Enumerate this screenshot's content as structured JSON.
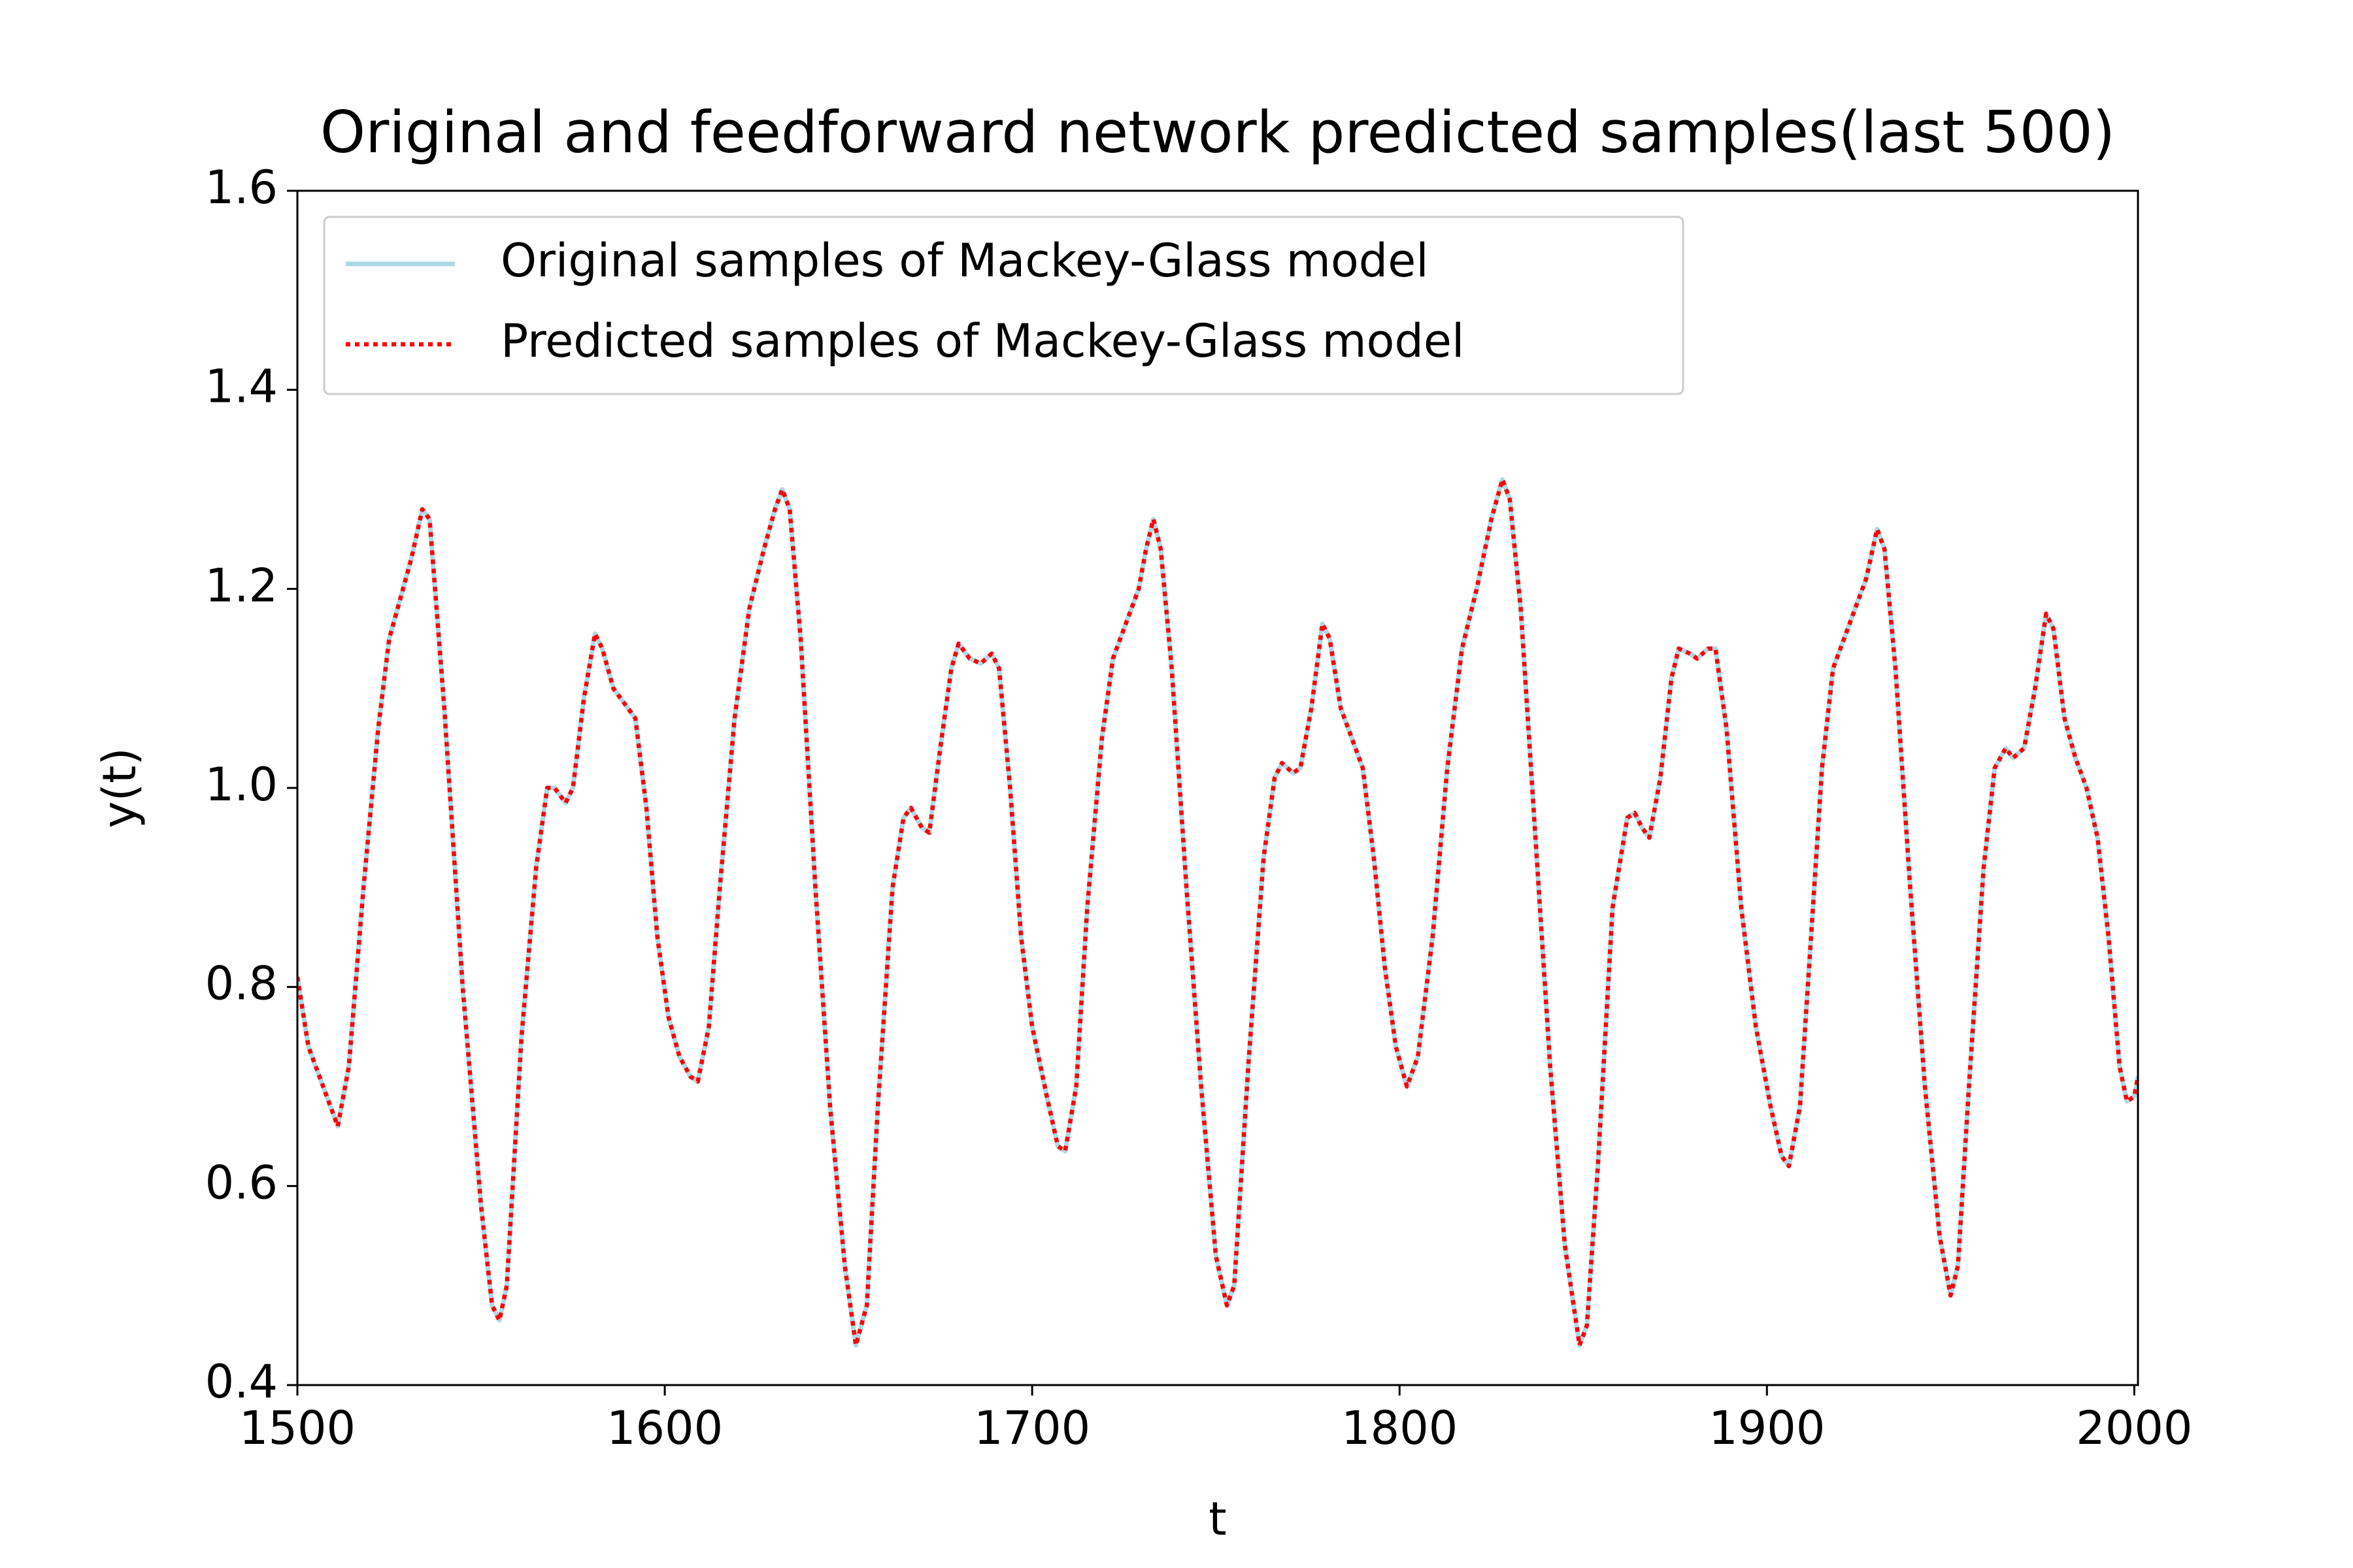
{
  "chart_data": {
    "type": "line",
    "title": "Original and feedforward network predicted samples(last 500)",
    "xlabel": "t",
    "ylabel": "y(t)",
    "x": [
      1500,
      1503,
      1508,
      1511,
      1514,
      1518,
      1522,
      1525,
      1528,
      1531,
      1534,
      1536,
      1540,
      1545,
      1550,
      1553,
      1555,
      1557,
      1561,
      1565,
      1568,
      1570,
      1573,
      1575,
      1578,
      1581,
      1583,
      1586,
      1589,
      1592,
      1595,
      1598,
      1601,
      1604,
      1607,
      1609,
      1612,
      1615,
      1619,
      1623,
      1627,
      1630,
      1632,
      1634,
      1637,
      1641,
      1645,
      1649,
      1652,
      1655,
      1658,
      1662,
      1665,
      1667,
      1670,
      1672,
      1675,
      1678,
      1680,
      1683,
      1686,
      1689,
      1691,
      1694,
      1697,
      1700,
      1704,
      1707,
      1709,
      1712,
      1715,
      1719,
      1722,
      1726,
      1729,
      1731,
      1733,
      1735,
      1738,
      1742,
      1746,
      1750,
      1753,
      1755,
      1759,
      1763,
      1766,
      1768,
      1771,
      1773,
      1776,
      1779,
      1781,
      1784,
      1787,
      1790,
      1793,
      1796,
      1799,
      1802,
      1805,
      1809,
      1813,
      1817,
      1821,
      1825,
      1828,
      1830,
      1833,
      1837,
      1841,
      1845,
      1849,
      1851,
      1854,
      1858,
      1862,
      1864,
      1866,
      1868,
      1871,
      1874,
      1876,
      1879,
      1881,
      1884,
      1886,
      1889,
      1893,
      1897,
      1901,
      1904,
      1906,
      1909,
      1912,
      1915,
      1918,
      1922,
      1925,
      1927,
      1930,
      1932,
      1935,
      1939,
      1943,
      1947,
      1950,
      1952,
      1955,
      1959,
      1962,
      1965,
      1967,
      1970,
      1973,
      1976,
      1978,
      1981,
      1984,
      1987,
      1990,
      1993,
      1996,
      1998,
      2000,
      2001
    ],
    "series": [
      {
        "name": "Original samples of Mackey-Glass model",
        "color": "#add8e6",
        "style": "solid",
        "values": [
          0.81,
          0.74,
          0.69,
          0.66,
          0.72,
          0.9,
          1.06,
          1.15,
          1.19,
          1.23,
          1.28,
          1.27,
          1.08,
          0.8,
          0.58,
          0.48,
          0.465,
          0.5,
          0.75,
          0.92,
          1.0,
          1.0,
          0.985,
          1.0,
          1.09,
          1.155,
          1.14,
          1.1,
          1.085,
          1.07,
          0.98,
          0.85,
          0.77,
          0.73,
          0.71,
          0.705,
          0.76,
          0.9,
          1.07,
          1.18,
          1.24,
          1.28,
          1.3,
          1.28,
          1.15,
          0.9,
          0.68,
          0.52,
          0.44,
          0.48,
          0.68,
          0.9,
          0.97,
          0.98,
          0.96,
          0.955,
          1.04,
          1.12,
          1.145,
          1.13,
          1.125,
          1.135,
          1.12,
          1.0,
          0.85,
          0.76,
          0.69,
          0.64,
          0.635,
          0.7,
          0.88,
          1.05,
          1.13,
          1.17,
          1.2,
          1.24,
          1.27,
          1.24,
          1.12,
          0.9,
          0.7,
          0.53,
          0.48,
          0.5,
          0.73,
          0.93,
          1.01,
          1.025,
          1.015,
          1.02,
          1.08,
          1.165,
          1.15,
          1.08,
          1.05,
          1.02,
          0.93,
          0.82,
          0.74,
          0.7,
          0.73,
          0.85,
          1.02,
          1.14,
          1.2,
          1.27,
          1.31,
          1.29,
          1.18,
          0.95,
          0.72,
          0.54,
          0.44,
          0.46,
          0.62,
          0.88,
          0.97,
          0.975,
          0.96,
          0.95,
          1.01,
          1.11,
          1.14,
          1.135,
          1.13,
          1.14,
          1.14,
          1.06,
          0.88,
          0.76,
          0.68,
          0.63,
          0.62,
          0.68,
          0.85,
          1.02,
          1.12,
          1.16,
          1.19,
          1.21,
          1.26,
          1.24,
          1.12,
          0.9,
          0.7,
          0.55,
          0.49,
          0.52,
          0.7,
          0.92,
          1.02,
          1.04,
          1.03,
          1.04,
          1.1,
          1.175,
          1.16,
          1.07,
          1.03,
          1.0,
          0.95,
          0.85,
          0.72,
          0.685,
          0.69,
          0.71
        ]
      },
      {
        "name": "Predicted samples of Mackey-Glass model",
        "color": "#ff0000",
        "style": "dotted",
        "values": [
          0.81,
          0.74,
          0.69,
          0.66,
          0.72,
          0.9,
          1.06,
          1.15,
          1.19,
          1.23,
          1.28,
          1.27,
          1.08,
          0.8,
          0.58,
          0.48,
          0.465,
          0.5,
          0.75,
          0.92,
          1.0,
          1.0,
          0.985,
          1.0,
          1.09,
          1.155,
          1.14,
          1.1,
          1.085,
          1.07,
          0.98,
          0.85,
          0.77,
          0.73,
          0.71,
          0.705,
          0.76,
          0.9,
          1.07,
          1.18,
          1.24,
          1.28,
          1.3,
          1.28,
          1.15,
          0.9,
          0.68,
          0.52,
          0.44,
          0.48,
          0.68,
          0.9,
          0.97,
          0.98,
          0.96,
          0.955,
          1.04,
          1.12,
          1.145,
          1.13,
          1.125,
          1.135,
          1.12,
          1.0,
          0.85,
          0.76,
          0.69,
          0.64,
          0.635,
          0.7,
          0.88,
          1.05,
          1.13,
          1.17,
          1.2,
          1.24,
          1.27,
          1.24,
          1.12,
          0.9,
          0.7,
          0.53,
          0.48,
          0.5,
          0.73,
          0.93,
          1.01,
          1.025,
          1.015,
          1.02,
          1.08,
          1.165,
          1.15,
          1.08,
          1.05,
          1.02,
          0.93,
          0.82,
          0.74,
          0.7,
          0.73,
          0.85,
          1.02,
          1.14,
          1.2,
          1.27,
          1.31,
          1.29,
          1.18,
          0.95,
          0.72,
          0.54,
          0.44,
          0.46,
          0.62,
          0.88,
          0.97,
          0.975,
          0.96,
          0.95,
          1.01,
          1.11,
          1.14,
          1.135,
          1.13,
          1.14,
          1.14,
          1.06,
          0.88,
          0.76,
          0.68,
          0.63,
          0.62,
          0.68,
          0.85,
          1.02,
          1.12,
          1.16,
          1.19,
          1.21,
          1.26,
          1.24,
          1.12,
          0.9,
          0.7,
          0.55,
          0.49,
          0.52,
          0.7,
          0.92,
          1.02,
          1.04,
          1.03,
          1.04,
          1.1,
          1.175,
          1.16,
          1.07,
          1.03,
          1.0,
          0.95,
          0.85,
          0.72,
          0.685,
          0.69,
          0.71
        ]
      }
    ],
    "xlim": [
      1500,
      2001
    ],
    "ylim": [
      0.4,
      1.6
    ],
    "xticks": [
      1500,
      1600,
      1700,
      1800,
      1900,
      2000
    ],
    "yticks": [
      0.4,
      0.6,
      0.8,
      {
        "value": 1,
        "label": "1.0"
      },
      1.2,
      1.4,
      1.6
    ],
    "grid": false,
    "legend": "upper left"
  }
}
